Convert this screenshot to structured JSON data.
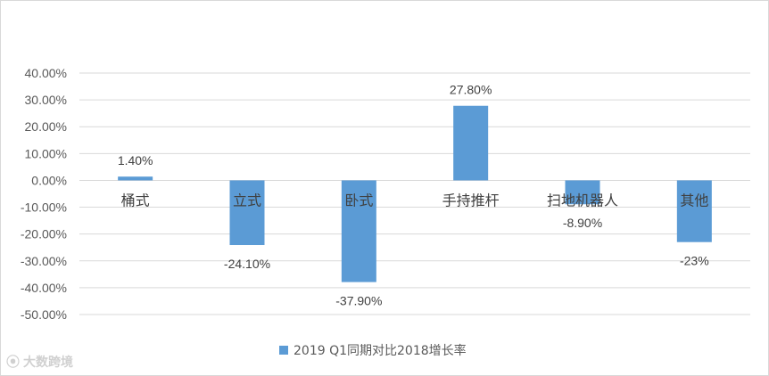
{
  "chart_data": {
    "type": "bar",
    "categories": [
      "桶式",
      "立式",
      "卧式",
      "手持推杆",
      "扫地机器人",
      "其他"
    ],
    "series": [
      {
        "name": "2019 Q1同期对比2018增长率",
        "values": [
          1.4,
          -24.1,
          -37.9,
          27.8,
          -8.9,
          -23.0
        ],
        "labels": [
          "1.40%",
          "-24.10%",
          "-37.90%",
          "27.80%",
          "-8.90%",
          "-23%"
        ],
        "color": "#5b9bd5"
      }
    ],
    "ylim": [
      -50,
      40
    ],
    "yticks": [
      40,
      30,
      20,
      10,
      0,
      -10,
      -20,
      -30,
      -40,
      -50
    ],
    "ytick_labels": [
      "40.00%",
      "30.00%",
      "20.00%",
      "10.00%",
      "0.00%",
      "-10.00%",
      "-20.00%",
      "-30.00%",
      "-40.00%",
      "-50.00%"
    ],
    "grid": true,
    "legend_position": "bottom"
  },
  "watermark": {
    "text": "大数跨境",
    "icon": "logo-mark-icon"
  }
}
